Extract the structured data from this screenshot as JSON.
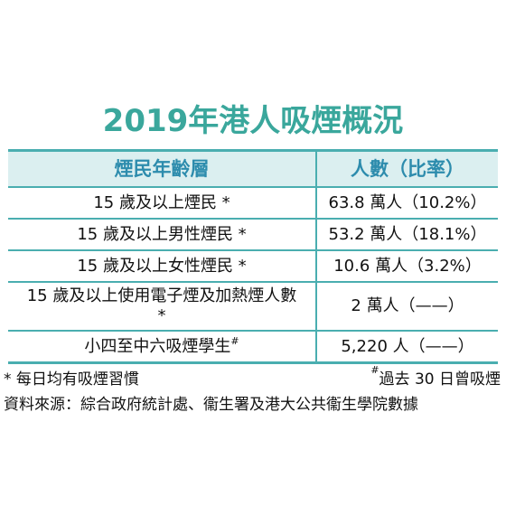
{
  "header": {
    "title": "2019年港人吸煙概況"
  },
  "table": {
    "columns": [
      "煙民年齡層",
      "人數（比率）"
    ],
    "rows": [
      {
        "label": "15 歲及以上煙民 *",
        "value": "63.8 萬人（10.2%）"
      },
      {
        "label": "15 歲及以上男性煙民 *",
        "value": "53.2 萬人（18.1%）"
      },
      {
        "label": "15 歲及以上女性煙民 *",
        "value": "10.6 萬人（3.2%）"
      },
      {
        "label": "15 歲及以上使用電子煙及加熱煙人數 *",
        "value": "2 萬人（——）"
      },
      {
        "label": "小四至中六吸煙學生",
        "mark": "#",
        "value": "5,220 人（——）"
      }
    ]
  },
  "footnotes": [
    "* 每日均有吸煙習慣",
    {
      "mark": "#",
      "text": "過去 30 日曾吸煙"
    }
  ],
  "source": "資料來源：綜合政府統計處、衞生署及港大公共衞生學院數據"
}
